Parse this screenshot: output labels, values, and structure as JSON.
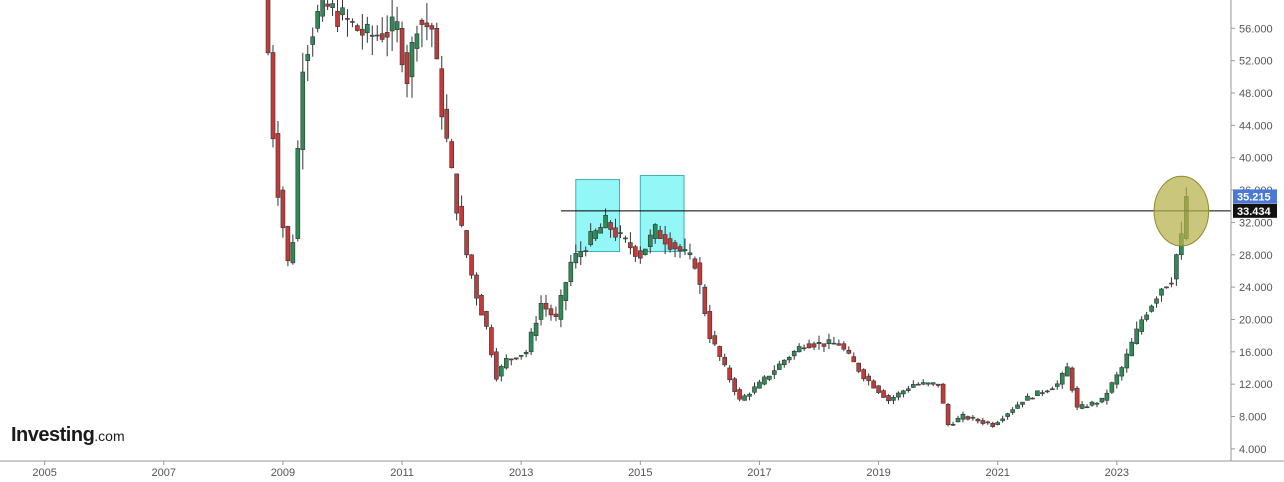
{
  "brand": {
    "name": "Investing",
    "suffix": ".com"
  },
  "colors": {
    "up": "#2e8b57",
    "down": "#c23b3b",
    "wick": "#333333",
    "axis": "#999999",
    "highlight_box": "#80f6f6",
    "highlight_border": "#40b0b0",
    "circle_fill": "#b5b14a",
    "circle_border": "#8c8a30",
    "last_price_bg": "#4a78d6",
    "level_bg": "#111111"
  },
  "chart_data": {
    "type": "candlestick",
    "interval": "monthly",
    "title": "",
    "xlabel": "",
    "ylabel": "",
    "ylim": [
      2.5,
      59.5
    ],
    "xlim": [
      "2004-04",
      "2024-12"
    ],
    "y_ticks": [
      "4.000",
      "8.000",
      "12.000",
      "16.000",
      "20.000",
      "24.000",
      "28.000",
      "32.000",
      "36.000",
      "40.000",
      "44.000",
      "48.000",
      "52.000",
      "56.000"
    ],
    "x_ticks": [
      "2005",
      "2007",
      "2009",
      "2011",
      "2013",
      "2015",
      "2017",
      "2019",
      "2021",
      "2023"
    ],
    "horizontal_line": {
      "value": 33.434,
      "label": "33.434",
      "from": "2013-09"
    },
    "last_price": {
      "value": 35.215,
      "label": "35.215"
    },
    "highlight_boxes": [
      {
        "from": "2013-12",
        "to": "2014-08",
        "low": 28.4,
        "high": 37.3
      },
      {
        "from": "2015-01",
        "to": "2015-09",
        "low": 28.4,
        "high": 37.8
      }
    ],
    "highlight_circle": {
      "center": "2024-02",
      "value": 33.4,
      "radius_months": 5.5,
      "radius_value": 4.3
    },
    "anchors": [
      [
        "2008-09",
        60
      ],
      [
        "2008-10",
        53
      ],
      [
        "2008-11",
        43
      ],
      [
        "2008-12",
        36
      ],
      [
        "2009-02",
        27
      ],
      [
        "2009-03",
        30
      ],
      [
        "2009-05",
        52
      ],
      [
        "2009-07",
        56
      ],
      [
        "2009-09",
        59
      ],
      [
        "2010-06",
        55
      ],
      [
        "2010-12",
        56
      ],
      [
        "2011-02",
        50
      ],
      [
        "2011-04",
        57
      ],
      [
        "2011-07",
        56
      ],
      [
        "2011-09",
        46
      ],
      [
        "2011-12",
        34
      ],
      [
        "2012-02",
        28
      ],
      [
        "2012-04",
        23
      ],
      [
        "2012-06",
        19
      ],
      [
        "2012-08",
        13
      ],
      [
        "2012-10",
        15
      ],
      [
        "2013-02",
        16
      ],
      [
        "2013-05",
        22
      ],
      [
        "2013-08",
        20
      ],
      [
        "2013-11",
        27
      ],
      [
        "2014-03",
        30
      ],
      [
        "2014-06",
        32
      ],
      [
        "2014-09",
        30
      ],
      [
        "2015-01",
        28
      ],
      [
        "2015-04",
        31
      ],
      [
        "2015-08",
        29
      ],
      [
        "2015-12",
        27
      ],
      [
        "2016-03",
        18
      ],
      [
        "2016-06",
        14
      ],
      [
        "2016-09",
        10
      ],
      [
        "2017-01",
        12
      ],
      [
        "2017-06",
        15
      ],
      [
        "2017-10",
        17
      ],
      [
        "2018-05",
        17
      ],
      [
        "2018-10",
        13
      ],
      [
        "2019-03",
        10
      ],
      [
        "2019-08",
        12
      ],
      [
        "2020-01",
        12
      ],
      [
        "2020-03",
        7
      ],
      [
        "2020-06",
        8
      ],
      [
        "2020-12",
        7
      ],
      [
        "2021-06",
        10
      ],
      [
        "2022-01",
        12
      ],
      [
        "2022-03",
        14
      ],
      [
        "2022-05",
        9
      ],
      [
        "2022-10",
        10
      ],
      [
        "2023-02",
        14
      ],
      [
        "2023-06",
        20
      ],
      [
        "2023-10",
        24
      ],
      [
        "2023-12",
        25
      ],
      [
        "2024-01",
        28
      ],
      [
        "2024-02",
        30
      ],
      [
        "2024-03",
        35.215
      ]
    ]
  }
}
